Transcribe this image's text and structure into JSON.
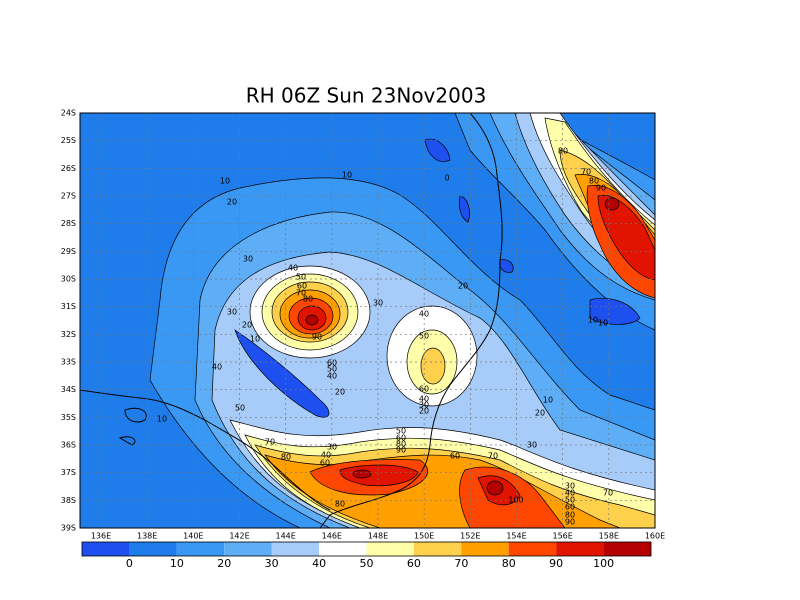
{
  "title": "RH 06Z Sun 23Nov2003",
  "lat_labels": [
    "24S",
    "25S",
    "26S",
    "27S",
    "28S",
    "29S",
    "30S",
    "31S",
    "32S",
    "33S",
    "34S",
    "35S",
    "36S",
    "37S",
    "38S",
    "39S"
  ],
  "lon_labels": [
    "136E",
    "138E",
    "140E",
    "142E",
    "144E",
    "146E",
    "148E",
    "150E",
    "152E",
    "154E",
    "156E",
    "158E",
    "160E"
  ],
  "colorbar": {
    "labels": [
      0,
      10,
      20,
      30,
      40,
      50,
      60,
      70,
      80,
      90,
      100
    ],
    "colors": [
      "#1e50f0",
      "#1e7ceb",
      "#3a98f5",
      "#5eaef7",
      "#a8ccfa",
      "#ffffff",
      "#ffffaa",
      "#ffd04c",
      "#ffa000",
      "#ff4600",
      "#e01400",
      "#b40000"
    ]
  },
  "contour_labels": [
    10,
    10,
    0,
    20,
    80,
    70,
    80,
    90,
    30,
    40,
    50,
    60,
    70,
    80,
    20,
    30,
    40,
    30,
    20,
    10,
    90,
    50,
    10,
    10,
    60,
    50,
    40,
    40,
    60,
    40,
    30,
    20,
    20,
    10,
    20,
    10,
    50,
    30,
    50,
    60,
    80,
    90,
    30,
    40,
    60,
    70,
    80,
    60,
    70,
    30,
    40,
    50,
    60,
    80,
    90,
    100,
    70,
    80
  ]
}
